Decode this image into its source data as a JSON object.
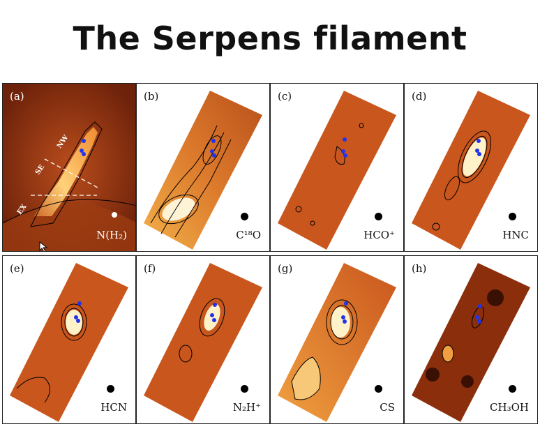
{
  "title": "The Serpens filament",
  "panels": [
    {
      "label": "(a)",
      "molecule": "N(H₂)",
      "regions": [
        "NW",
        "SE",
        "EX"
      ]
    },
    {
      "label": "(b)",
      "molecule": "C¹⁸O"
    },
    {
      "label": "(c)",
      "molecule": "HCO⁺"
    },
    {
      "label": "(d)",
      "molecule": "HNC"
    },
    {
      "label": "(e)",
      "molecule": "HCN"
    },
    {
      "label": "(f)",
      "molecule": "N₂H⁺"
    },
    {
      "label": "(g)",
      "molecule": "CS"
    },
    {
      "label": "(h)",
      "molecule": "CH₃OH"
    }
  ],
  "colors": {
    "map_dark": "#8a2e0c",
    "map_mid": "#c9561d",
    "map_bright": "#f0a040",
    "map_peak": "#fff1c8",
    "markers": "#2233ee",
    "contours": "#000000"
  },
  "icons": {
    "cursor": "mouse-pointer-icon",
    "beam": "beam-circle-icon",
    "source": "star-marker-icon"
  }
}
